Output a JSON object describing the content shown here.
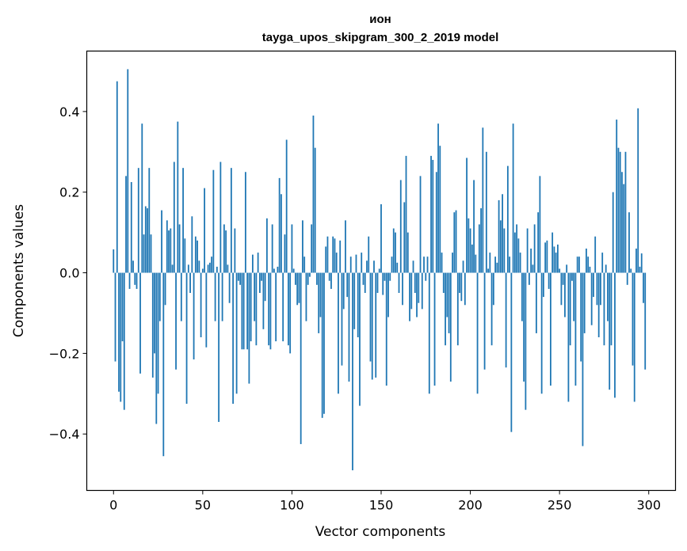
{
  "chart_data": {
    "type": "bar",
    "title_line1": "ион",
    "title_line2": "tayga_upos_skipgram_300_2_2019 model",
    "xlabel": "Vector components",
    "ylabel": "Components values",
    "xlim": [
      -15,
      315
    ],
    "ylim": [
      -0.54,
      0.55
    ],
    "xticks": [
      0,
      50,
      100,
      150,
      200,
      250,
      300
    ],
    "xtick_labels": [
      "0",
      "50",
      "100",
      "150",
      "200",
      "250",
      "300"
    ],
    "yticks": [
      -0.4,
      -0.2,
      0.0,
      0.2,
      0.4
    ],
    "ytick_labels": [
      "−0.4",
      "−0.2",
      "0.0",
      "0.2",
      "0.4"
    ],
    "bar_color": "#1f77b4",
    "grid": false,
    "values": [
      0.058,
      -0.22,
      0.475,
      -0.295,
      -0.32,
      -0.17,
      -0.34,
      0.24,
      0.505,
      -0.04,
      0.225,
      0.03,
      -0.03,
      -0.04,
      0.26,
      -0.25,
      0.37,
      0.095,
      0.165,
      0.16,
      0.26,
      0.095,
      -0.26,
      -0.2,
      -0.375,
      -0.3,
      -0.12,
      0.155,
      -0.455,
      -0.08,
      0.13,
      0.105,
      0.11,
      0.02,
      0.275,
      -0.24,
      0.375,
      0.12,
      -0.12,
      0.26,
      0.085,
      -0.325,
      0.02,
      -0.05,
      0.14,
      -0.215,
      0.09,
      0.08,
      0.03,
      -0.16,
      0.01,
      0.21,
      -0.185,
      0.02,
      0.025,
      0.04,
      0.255,
      -0.12,
      0.015,
      -0.37,
      0.275,
      -0.12,
      0.12,
      0.105,
      0.02,
      -0.075,
      0.26,
      -0.325,
      0.11,
      -0.3,
      -0.02,
      -0.03,
      -0.19,
      -0.19,
      0.25,
      -0.19,
      -0.275,
      -0.17,
      0.045,
      -0.12,
      -0.18,
      0.05,
      -0.05,
      -0.02,
      -0.14,
      -0.07,
      0.135,
      -0.18,
      -0.19,
      0.12,
      0.01,
      -0.17,
      0.015,
      0.235,
      0.195,
      -0.17,
      0.095,
      0.33,
      -0.18,
      -0.2,
      0.12,
      0.01,
      -0.03,
      -0.08,
      -0.075,
      -0.425,
      0.13,
      0.04,
      -0.12,
      -0.03,
      -0.01,
      0.12,
      0.39,
      0.31,
      -0.03,
      -0.15,
      -0.11,
      -0.36,
      -0.35,
      0.065,
      0.09,
      -0.02,
      -0.04,
      0.09,
      0.085,
      0.05,
      -0.3,
      0.08,
      -0.23,
      -0.09,
      0.13,
      -0.06,
      -0.27,
      0.04,
      -0.49,
      -0.14,
      0.045,
      -0.16,
      -0.33,
      0.05,
      -0.03,
      -0.05,
      0.03,
      0.09,
      -0.22,
      -0.265,
      0.03,
      -0.26,
      -0.05,
      0.01,
      0.17,
      -0.055,
      -0.02,
      -0.28,
      -0.11,
      -0.02,
      0.04,
      0.11,
      0.1,
      0.025,
      -0.05,
      0.23,
      -0.08,
      0.175,
      0.29,
      0.1,
      -0.12,
      -0.09,
      0.03,
      -0.05,
      -0.11,
      -0.075,
      0.24,
      -0.09,
      0.04,
      -0.02,
      0.04,
      -0.3,
      0.29,
      0.28,
      -0.28,
      0.25,
      0.37,
      0.315,
      0.05,
      -0.05,
      -0.18,
      -0.11,
      -0.15,
      -0.27,
      0.05,
      0.15,
      0.155,
      -0.18,
      -0.05,
      -0.07,
      0.03,
      -0.08,
      0.285,
      0.135,
      0.11,
      0.07,
      0.23,
      0.045,
      -0.3,
      0.12,
      0.16,
      0.36,
      -0.24,
      0.3,
      0.01,
      0.05,
      -0.18,
      -0.08,
      0.04,
      0.025,
      0.18,
      0.13,
      0.195,
      0.11,
      -0.235,
      0.265,
      0.04,
      -0.395,
      0.37,
      0.1,
      0.12,
      0.085,
      0.05,
      -0.12,
      -0.27,
      -0.34,
      0.11,
      -0.03,
      0.06,
      0.02,
      0.12,
      -0.15,
      0.15,
      0.24,
      -0.3,
      -0.06,
      0.075,
      0.08,
      -0.04,
      -0.28,
      0.1,
      0.065,
      0.05,
      0.07,
      0.01,
      -0.08,
      -0.03,
      -0.11,
      0.02,
      -0.32,
      -0.18,
      -0.02,
      -0.12,
      -0.28,
      0.04,
      0.04,
      -0.22,
      -0.43,
      -0.15,
      0.06,
      0.04,
      0.015,
      -0.13,
      -0.06,
      0.09,
      -0.08,
      -0.16,
      -0.08,
      0.05,
      -0.18,
      0.02,
      -0.12,
      -0.29,
      -0.18,
      0.2,
      -0.31,
      0.38,
      0.31,
      0.3,
      0.25,
      0.22,
      0.3,
      -0.03,
      0.15,
      0.01,
      -0.23,
      -0.32,
      0.06,
      0.408,
      0.015,
      0.048,
      -0.075,
      -0.24
    ]
  }
}
